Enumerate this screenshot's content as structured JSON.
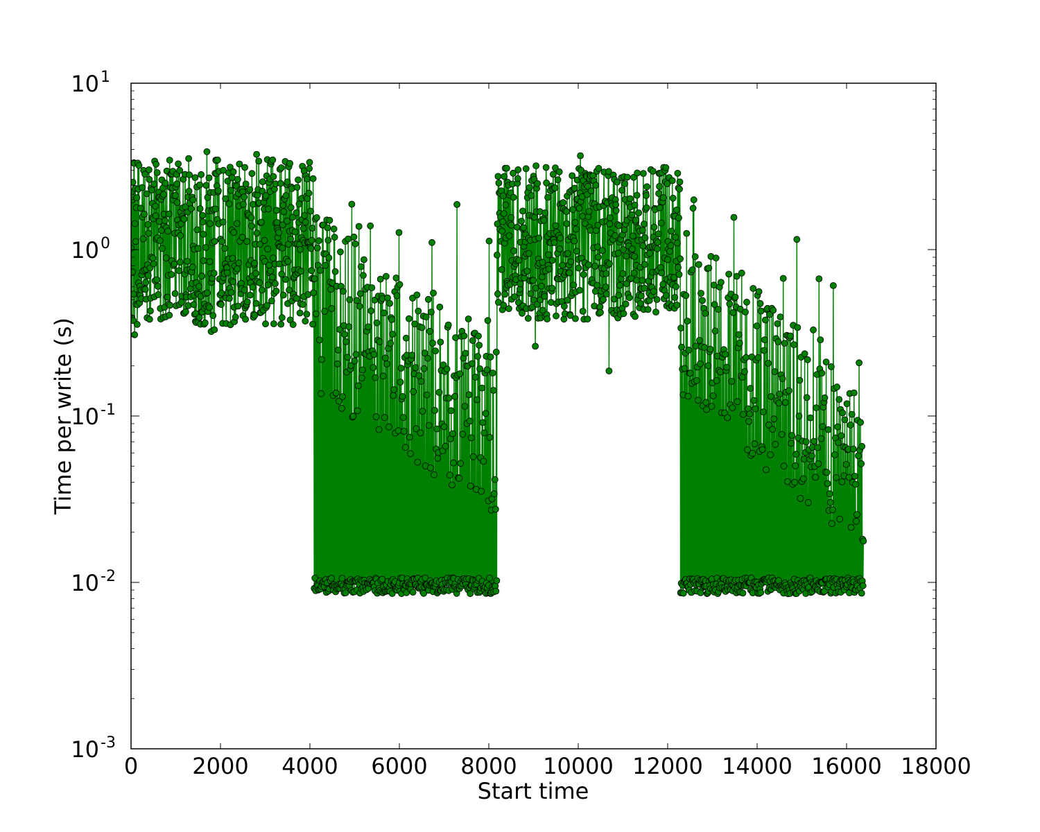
{
  "chart_data": {
    "type": "line",
    "title": "",
    "xlabel": "Start time",
    "ylabel": "Time per write (s)",
    "xlim": [
      0,
      18000
    ],
    "ylim": [
      0.001,
      10
    ],
    "yscale": "log",
    "grid": false,
    "marker": "circle",
    "colors": {
      "series": "#008000",
      "marker_edge": "#000000"
    },
    "x_ticks": [
      "0",
      "2000",
      "4000",
      "6000",
      "8000",
      "10000",
      "12000",
      "14000",
      "16000",
      "18000"
    ],
    "y_ticks": [
      {
        "base": "10",
        "exp": "-3",
        "value": 0.001
      },
      {
        "base": "10",
        "exp": "-2",
        "value": 0.01
      },
      {
        "base": "10",
        "exp": "-1",
        "value": 0.1
      },
      {
        "base": "10",
        "exp": "0",
        "value": 1
      },
      {
        "base": "10",
        "exp": "1",
        "value": 10
      }
    ],
    "segments": [
      {
        "x_start": 0,
        "x_end": 4095,
        "pattern": "steady",
        "upper_band": [
          1.0,
          3.5
        ],
        "lower_band": [
          0.35,
          0.9
        ],
        "upper_max": 4.2,
        "lower_min": 0.28
      },
      {
        "x_start": 4096,
        "x_end": 8191,
        "pattern": "decaying",
        "upper_start": 1.8,
        "upper_end": 0.3,
        "upper_max": 1.95,
        "floor": 0.0095
      },
      {
        "x_start": 8192,
        "x_end": 12287,
        "pattern": "steady",
        "upper_band": [
          1.0,
          3.2
        ],
        "lower_band": [
          0.38,
          1.0
        ],
        "upper_max": 4.3,
        "lower_min": 0.155
      },
      {
        "x_start": 12288,
        "x_end": 16383,
        "pattern": "decaying",
        "upper_start": 1.5,
        "upper_end": 0.2,
        "upper_max": 2.4,
        "floor": 0.0095
      }
    ]
  }
}
